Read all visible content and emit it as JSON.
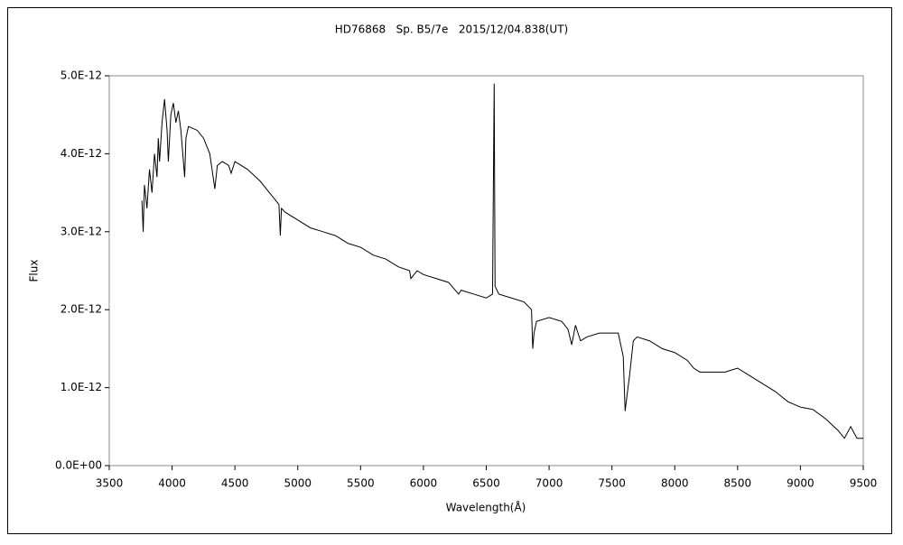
{
  "chart_data": {
    "type": "line",
    "title": "HD76868   Sp. B5/7e   2015/12/04.838(UT)",
    "x_label": "Wavelength(Å)",
    "y_label": "Flux",
    "xlim": [
      3500,
      9500
    ],
    "xticks": [
      3500,
      4000,
      4500,
      5000,
      5500,
      6000,
      6500,
      7000,
      7500,
      8000,
      8500,
      9000,
      9500
    ],
    "ylim": [
      0,
      5e-12
    ],
    "yticks": [
      {
        "value": 0,
        "label": "0.0E+00"
      },
      {
        "value": 1e-12,
        "label": "1.0E-12"
      },
      {
        "value": 2e-12,
        "label": "2.0E-12"
      },
      {
        "value": 3e-12,
        "label": "3.0E-12"
      },
      {
        "value": 4e-12,
        "label": "4.0E-12"
      },
      {
        "value": 5e-12,
        "label": "5.0E-12"
      }
    ],
    "series": [
      {
        "color": "#000000",
        "x": [
          3760,
          3770,
          3780,
          3800,
          3820,
          3840,
          3860,
          3880,
          3890,
          3900,
          3920,
          3940,
          3960,
          3970,
          3990,
          4010,
          4030,
          4050,
          4070,
          4100,
          4110,
          4130,
          4200,
          4250,
          4300,
          4340,
          4360,
          4400,
          4450,
          4470,
          4500,
          4600,
          4700,
          4800,
          4850,
          4861,
          4870,
          4900,
          5000,
          5100,
          5200,
          5300,
          5400,
          5500,
          5600,
          5700,
          5800,
          5890,
          5900,
          5950,
          6000,
          6100,
          6200,
          6280,
          6300,
          6400,
          6500,
          6550,
          6563,
          6570,
          6600,
          6700,
          6800,
          6860,
          6870,
          6880,
          6900,
          7000,
          7100,
          7150,
          7180,
          7210,
          7250,
          7300,
          7400,
          7550,
          7590,
          7605,
          7620,
          7640,
          7670,
          7700,
          7800,
          7900,
          8000,
          8100,
          8150,
          8200,
          8300,
          8400,
          8500,
          8600,
          8700,
          8800,
          8900,
          9000,
          9100,
          9200,
          9300,
          9350,
          9400,
          9450,
          9500
        ],
        "values": [
          3.4e-12,
          3e-12,
          3.6e-12,
          3.3e-12,
          3.8e-12,
          3.5e-12,
          4e-12,
          3.7e-12,
          4.2e-12,
          3.9e-12,
          4.4e-12,
          4.7e-12,
          4.3e-12,
          3.9e-12,
          4.5e-12,
          4.65e-12,
          4.4e-12,
          4.55e-12,
          4.3e-12,
          3.7e-12,
          4.2e-12,
          4.35e-12,
          4.3e-12,
          4.2e-12,
          4e-12,
          3.55e-12,
          3.85e-12,
          3.9e-12,
          3.85e-12,
          3.75e-12,
          3.9e-12,
          3.8e-12,
          3.65e-12,
          3.45e-12,
          3.35e-12,
          2.95e-12,
          3.3e-12,
          3.25e-12,
          3.15e-12,
          3.05e-12,
          3e-12,
          2.95e-12,
          2.85e-12,
          2.8e-12,
          2.7e-12,
          2.65e-12,
          2.55e-12,
          2.5e-12,
          2.4e-12,
          2.5e-12,
          2.45e-12,
          2.4e-12,
          2.35e-12,
          2.2e-12,
          2.25e-12,
          2.2e-12,
          2.15e-12,
          2.2e-12,
          4.9e-12,
          2.3e-12,
          2.2e-12,
          2.15e-12,
          2.1e-12,
          2e-12,
          1.5e-12,
          1.7e-12,
          1.85e-12,
          1.9e-12,
          1.85e-12,
          1.75e-12,
          1.55e-12,
          1.8e-12,
          1.6e-12,
          1.65e-12,
          1.7e-12,
          1.7e-12,
          1.4e-12,
          7e-13,
          9e-13,
          1.15e-12,
          1.6e-12,
          1.65e-12,
          1.6e-12,
          1.5e-12,
          1.45e-12,
          1.35e-12,
          1.25e-12,
          1.2e-12,
          1.2e-12,
          1.2e-12,
          1.25e-12,
          1.15e-12,
          1.05e-12,
          9.5e-13,
          8.2e-13,
          7.5e-13,
          7.2e-13,
          6e-13,
          4.5e-13,
          3.5e-13,
          5e-13,
          3.5e-13,
          3.5e-13
        ]
      }
    ]
  }
}
